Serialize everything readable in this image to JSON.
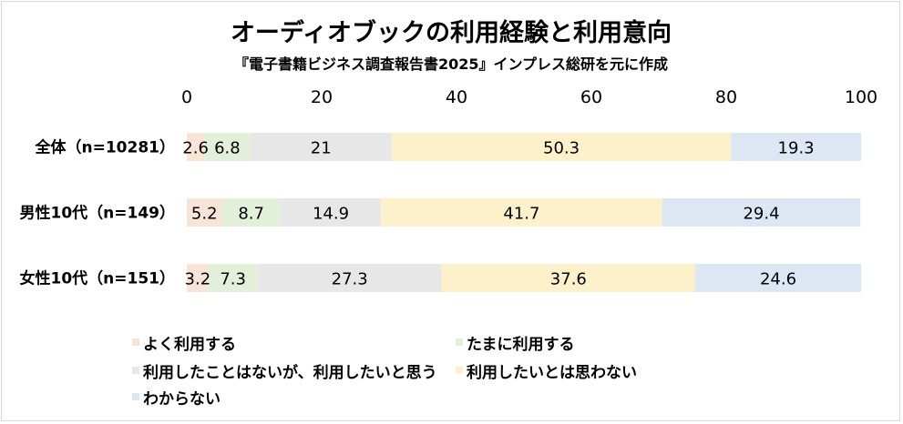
{
  "chart_data": {
    "type": "bar",
    "orientation": "horizontal",
    "stacked": true,
    "title": "オーディオブックの利用経験と利用意向",
    "subtitle": "『電子書籍ビジネス調査報告書2025』インプレス総研を元に作成",
    "xlim": [
      0,
      100
    ],
    "xticks": [
      "0",
      "20",
      "40",
      "60",
      "80",
      "100"
    ],
    "grid": false,
    "legend_position": "bottom",
    "categories": [
      "全体（n=10281）",
      "男性10代（n=149）",
      "女性10代（n=151）"
    ],
    "series": [
      {
        "name": "よく利用する",
        "color": "#f8e5d8",
        "values": [
          2.6,
          5.2,
          3.2
        ]
      },
      {
        "name": "たまに利用する",
        "color": "#e2efd9",
        "values": [
          6.8,
          8.7,
          7.3
        ]
      },
      {
        "name": "利用したことはないが、利用したいと思う",
        "color": "#e7e7e7",
        "values": [
          21,
          14.9,
          27.3
        ]
      },
      {
        "name": "利用したいとは思わない",
        "color": "#fdf1cc",
        "values": [
          50.3,
          41.7,
          37.6
        ]
      },
      {
        "name": "わからない",
        "color": "#dde7f4",
        "values": [
          19.3,
          29.4,
          24.6
        ]
      }
    ]
  }
}
